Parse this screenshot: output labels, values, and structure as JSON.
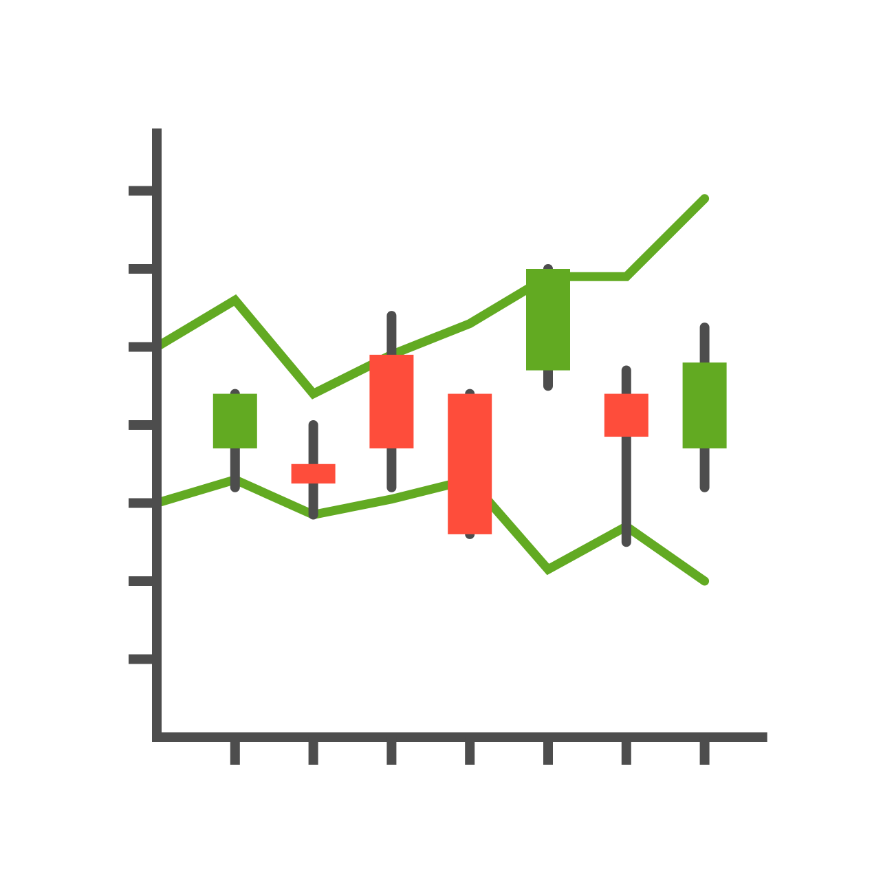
{
  "chart_data": {
    "type": "candlestick",
    "title": "",
    "xlabel": "",
    "ylabel": "",
    "x": [
      1,
      2,
      3,
      4,
      5,
      6,
      7
    ],
    "xlim": [
      0,
      7.8
    ],
    "ylim": [
      0,
      7.8
    ],
    "yticks": [
      1,
      2,
      3,
      4,
      5,
      6,
      7
    ],
    "grid": false,
    "legend": "none",
    "colors": {
      "axis": "#4d4d4d",
      "up": "#62aa22",
      "down": "#fe4d3b",
      "line": "#62aa22"
    },
    "candles": [
      {
        "x": 1,
        "open": 3.7,
        "close": 4.4,
        "high": 4.4,
        "low": 3.2,
        "direction": "up"
      },
      {
        "x": 2,
        "open": 3.5,
        "close": 3.25,
        "high": 4.0,
        "low": 2.85,
        "direction": "down"
      },
      {
        "x": 3,
        "open": 4.9,
        "close": 3.7,
        "high": 5.4,
        "low": 3.2,
        "direction": "down"
      },
      {
        "x": 4,
        "open": 4.4,
        "close": 2.6,
        "high": 4.4,
        "low": 2.6,
        "direction": "down"
      },
      {
        "x": 5,
        "open": 4.7,
        "close": 6.0,
        "high": 6.0,
        "low": 4.5,
        "direction": "up"
      },
      {
        "x": 6,
        "open": 4.4,
        "close": 3.85,
        "high": 4.7,
        "low": 2.5,
        "direction": "down"
      },
      {
        "x": 7,
        "open": 3.7,
        "close": 4.8,
        "high": 5.25,
        "low": 3.2,
        "direction": "up"
      }
    ],
    "series": [
      {
        "x": [
          0,
          1,
          2,
          3,
          4,
          5,
          6,
          7
        ],
        "values": [
          5.0,
          5.6,
          4.4,
          4.9,
          5.3,
          5.9,
          5.9,
          6.9
        ]
      },
      {
        "x": [
          0,
          1,
          2,
          3,
          4,
          5,
          6,
          7
        ],
        "values": [
          3.0,
          3.3,
          2.85,
          3.05,
          3.3,
          2.15,
          2.7,
          2.0
        ]
      }
    ]
  }
}
